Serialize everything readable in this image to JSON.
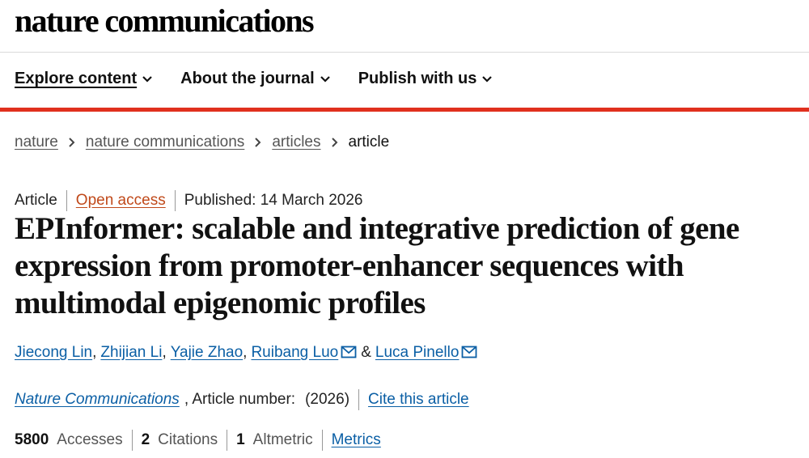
{
  "header": {
    "logo": "nature communications"
  },
  "nav": [
    "Explore content",
    "About the journal",
    "Publish with us"
  ],
  "breadcrumbs": [
    "nature",
    "nature communications",
    "articles",
    "article"
  ],
  "article": {
    "type": "Article",
    "access": "Open access",
    "published": "Published: 14 March 2026",
    "title": "EPInformer: scalable and integrative prediction of gene expression from promoter-enhancer sequences with multimodal epigenomic profiles",
    "authors": [
      {
        "name": "Jiecong Lin",
        "sep": ","
      },
      {
        "name": "Zhijian Li",
        "sep": ","
      },
      {
        "name": "Yajie Zhao",
        "sep": ","
      },
      {
        "name": "Ruibang Luo",
        "corresponding": true,
        "sep": "&"
      },
      {
        "name": "Luca Pinello",
        "corresponding": true
      }
    ],
    "journal": "Nature Communications",
    "article_number": ", Article number:",
    "year": "(2026)",
    "cite": "Cite this article",
    "metrics": [
      {
        "value": 5800,
        "label": "Accesses"
      },
      {
        "value": 2,
        "label": "Citations"
      },
      {
        "value": 1,
        "label": "Altmetric"
      }
    ],
    "metrics_link": "Metrics"
  }
}
